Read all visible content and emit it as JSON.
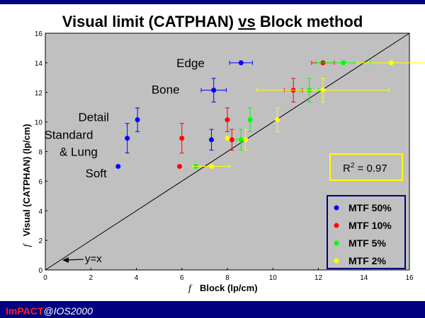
{
  "title": {
    "main": "Visual limit (CATPHAN) ",
    "vs": "vs",
    "tail": " Block method"
  },
  "footer": {
    "brand": "ImPACT",
    "conference": "@IOS2000"
  },
  "colors": {
    "plot_bg": "#c0c0c0",
    "blue": "#0000ff",
    "red": "#ff0000",
    "green": "#00ff00",
    "yellow": "#ffff00",
    "brand_band": "#000080"
  },
  "chart_data": {
    "type": "scatter",
    "xlabel_f": "f",
    "xlabel": "Block (lp/cm)",
    "ylabel_f": "f",
    "ylabel": "Visual (CATPHAN) (lp/cm)",
    "xlim": [
      0,
      16
    ],
    "ylim": [
      0,
      16
    ],
    "xticks": [
      "0",
      "2",
      "4",
      "6",
      "8",
      "10",
      "12",
      "14",
      "16"
    ],
    "yticks": [
      "0",
      "2",
      "4",
      "6",
      "8",
      "10",
      "12",
      "14",
      "16"
    ],
    "grid": false,
    "legend_position": "bottom-right",
    "r_squared_label": "R",
    "r_squared_sup": "2",
    "r_squared_value": " = 0.97",
    "reference_line_label": "y=x",
    "category_labels": [
      {
        "text": "Edge",
        "x": 7.0,
        "y": 14.0
      },
      {
        "text": "Bone",
        "x": 5.9,
        "y": 12.2
      },
      {
        "text": "Detail",
        "x": 2.8,
        "y": 10.35
      },
      {
        "text": "Standard",
        "x": 2.1,
        "y": 9.15
      },
      {
        "text": "& Lung",
        "x": 2.3,
        "y": 8.0
      },
      {
        "text": "Soft",
        "x": 2.7,
        "y": 6.55
      }
    ],
    "series": [
      {
        "name": "MTF 50%",
        "color": "#0000ff",
        "points": [
          {
            "x": 8.6,
            "y": 14.0,
            "xerr": 0.5,
            "yerr": 0
          },
          {
            "x": 7.4,
            "y": 12.15,
            "xerr": 0.55,
            "yerr": 0.8
          },
          {
            "x": 4.05,
            "y": 10.15,
            "xerr": 0,
            "yerr": 0.8
          },
          {
            "x": 3.6,
            "y": 8.9,
            "xerr": 0,
            "yerr": 1.0
          },
          {
            "x": 3.2,
            "y": 7.0,
            "xerr": 0,
            "yerr": 0
          },
          {
            "x": 7.3,
            "y": 8.8,
            "xerr": 0,
            "yerr": 0.7
          }
        ]
      },
      {
        "name": "MTF 10%",
        "color": "#ff0000",
        "points": [
          {
            "x": 12.2,
            "y": 14.0,
            "xerr": 0.5,
            "yerr": 0
          },
          {
            "x": 10.9,
            "y": 12.15,
            "xerr": 0.4,
            "yerr": 0.8
          },
          {
            "x": 8.0,
            "y": 10.15,
            "xerr": 0,
            "yerr": 0.8
          },
          {
            "x": 6.0,
            "y": 8.9,
            "xerr": 0,
            "yerr": 1.0
          },
          {
            "x": 8.2,
            "y": 8.8,
            "xerr": 0,
            "yerr": 0.7
          },
          {
            "x": 5.9,
            "y": 7.0,
            "xerr": 0,
            "yerr": 0
          }
        ]
      },
      {
        "name": "MTF 5%",
        "color": "#00ff00",
        "points": [
          {
            "x": 13.1,
            "y": 14.0,
            "xerr": 1.2,
            "yerr": 0
          },
          {
            "x": 11.6,
            "y": 12.15,
            "xerr": 0.4,
            "yerr": 0.8
          },
          {
            "x": 9.0,
            "y": 10.15,
            "xerr": 0,
            "yerr": 0.8
          },
          {
            "x": 8.6,
            "y": 8.8,
            "xerr": 0.2,
            "yerr": 0.7
          },
          {
            "x": 6.6,
            "y": 7.0,
            "xerr": 0,
            "yerr": 0
          }
        ]
      },
      {
        "name": "MTF 2%",
        "color": "#ffff00",
        "points": [
          {
            "x": 15.2,
            "y": 14.0,
            "xerr": 1.5,
            "yerr": 0
          },
          {
            "x": 12.2,
            "y": 12.15,
            "xerr": 2.9,
            "yerr": 0.8
          },
          {
            "x": 10.2,
            "y": 10.15,
            "xerr": 0,
            "yerr": 0.8
          },
          {
            "x": 8.0,
            "y": 8.9,
            "xerr": 0,
            "yerr": 0
          },
          {
            "x": 8.8,
            "y": 8.8,
            "xerr": 0,
            "yerr": 0.7
          },
          {
            "x": 7.3,
            "y": 7.0,
            "xerr": 0.8,
            "yerr": 0
          }
        ]
      }
    ]
  }
}
